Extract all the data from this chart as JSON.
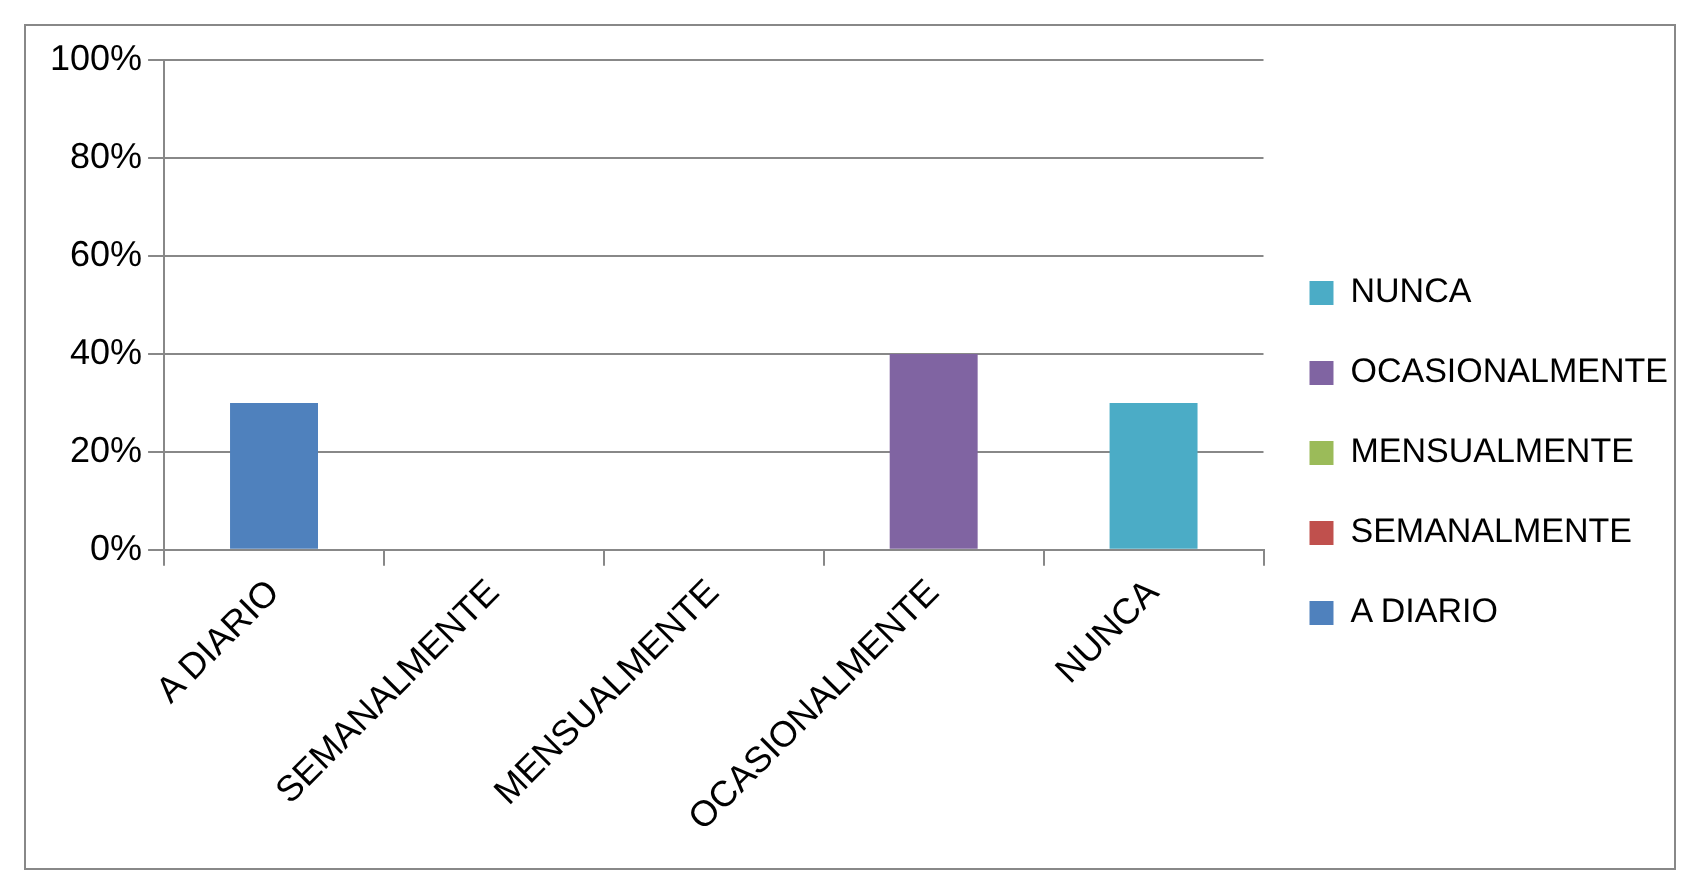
{
  "chart_data": {
    "type": "bar",
    "stacked": true,
    "categories": [
      "A DIARIO",
      "SEMANALMENTE",
      "MENSUALMENTE",
      "OCASIONALMENTE",
      "NUNCA"
    ],
    "series": [
      {
        "name": "A DIARIO",
        "color": "#4f81bd",
        "values": [
          30,
          0,
          0,
          0,
          0
        ]
      },
      {
        "name": "SEMANALMENTE",
        "color": "#c0504d",
        "values": [
          0,
          0,
          0,
          0,
          0
        ]
      },
      {
        "name": "MENSUALMENTE",
        "color": "#9bbb59",
        "values": [
          0,
          0,
          0,
          0,
          0
        ]
      },
      {
        "name": "OCASIONALMENTE",
        "color": "#8064a2",
        "values": [
          0,
          0,
          0,
          40,
          0
        ]
      },
      {
        "name": "NUNCA",
        "color": "#4bacc6",
        "values": [
          0,
          0,
          0,
          0,
          30
        ]
      }
    ],
    "ylim": [
      0,
      100
    ],
    "yticks": [
      {
        "value": 0,
        "label": "0%"
      },
      {
        "value": 20,
        "label": "20%"
      },
      {
        "value": 40,
        "label": "40%"
      },
      {
        "value": 60,
        "label": "60%"
      },
      {
        "value": 80,
        "label": "80%"
      },
      {
        "value": 100,
        "label": "100%"
      }
    ],
    "grid": "y",
    "legend": "right"
  }
}
